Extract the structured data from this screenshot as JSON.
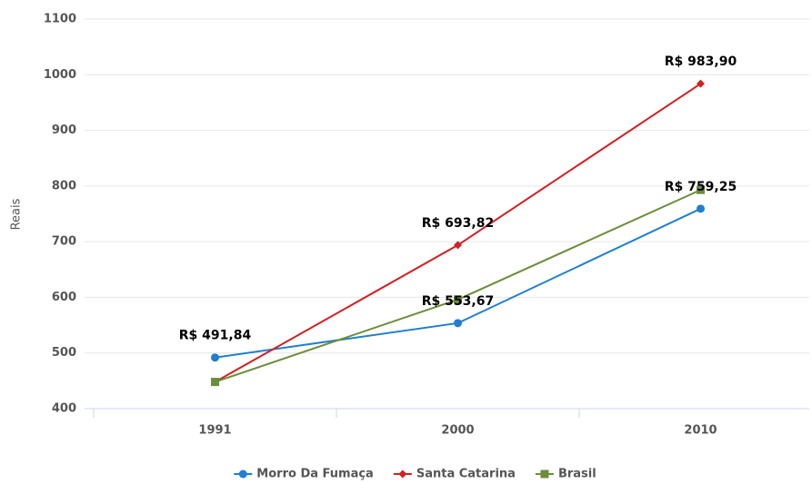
{
  "chart_data": {
    "type": "line",
    "y_label": "Reais",
    "categories": [
      "1991",
      "2000",
      "2010"
    ],
    "series": [
      {
        "name": "Morro Da Fumaça",
        "color": "#1f7fd0",
        "marker": "circle",
        "values": [
          491.84,
          553.67,
          759.25
        ],
        "value_labels": [
          "R$ 491,84",
          "R$ 553,67",
          "R$ 759,25"
        ]
      },
      {
        "name": "Santa Catarina",
        "color": "#d42020",
        "marker": "diamond",
        "values": [
          448,
          693.82,
          983.9
        ],
        "value_labels": [
          null,
          "R$ 693,82",
          "R$ 983,90"
        ]
      },
      {
        "name": "Brasil",
        "color": "#6b8e3a",
        "marker": "square",
        "values": [
          448,
          596,
          793
        ],
        "value_labels": [
          null,
          null,
          null
        ]
      }
    ],
    "ylim": [
      400,
      1100
    ],
    "yticks": [
      400,
      500,
      600,
      700,
      800,
      900,
      1000,
      1100
    ],
    "grid": true,
    "legend": "bottom"
  }
}
